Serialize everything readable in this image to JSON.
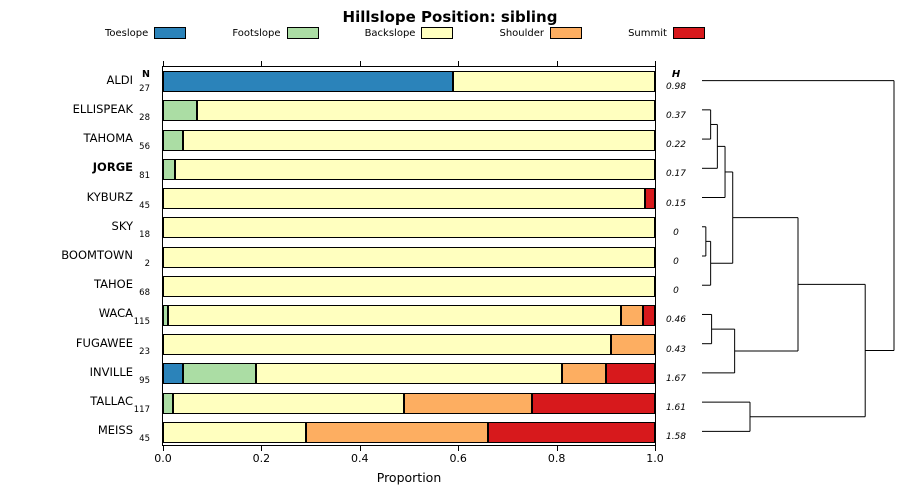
{
  "title": "Hillslope Position: sibling",
  "chart_data": {
    "type": "bar",
    "subtype": "stacked-horizontal-with-dendrogram",
    "title": "Hillslope Position: sibling",
    "xlabel": "Proportion",
    "xlim": [
      0,
      1
    ],
    "x_tick_labels": [
      "0.0",
      "0.2",
      "0.4",
      "0.6",
      "0.8",
      "1.0"
    ],
    "n_column_header": "N",
    "h_column_header": "H",
    "series_categories": [
      "Toeslope",
      "Footslope",
      "Backslope",
      "Shoulder",
      "Summit"
    ],
    "series_colors": [
      "#2B83BA",
      "#ABDDA4",
      "#FFFFBF",
      "#FDAE61",
      "#D7191C"
    ],
    "rows": [
      {
        "site": "ALDI",
        "n": 27,
        "h": "0.98",
        "bold": false,
        "proportions": [
          0.59,
          0,
          0.41,
          0,
          0
        ]
      },
      {
        "site": "ELLISPEAK",
        "n": 28,
        "h": "0.37",
        "bold": false,
        "proportions": [
          0,
          0.07,
          0.93,
          0,
          0
        ]
      },
      {
        "site": "TAHOMA",
        "n": 56,
        "h": "0.22",
        "bold": false,
        "proportions": [
          0,
          0.04,
          0.96,
          0,
          0
        ]
      },
      {
        "site": "JORGE",
        "n": 81,
        "h": "0.17",
        "bold": true,
        "proportions": [
          0,
          0.025,
          0.975,
          0,
          0
        ]
      },
      {
        "site": "KYBURZ",
        "n": 45,
        "h": "0.15",
        "bold": false,
        "proportions": [
          0,
          0,
          0.98,
          0,
          0.02
        ]
      },
      {
        "site": "SKY",
        "n": 18,
        "h": "0",
        "bold": false,
        "proportions": [
          0,
          0,
          1,
          0,
          0
        ]
      },
      {
        "site": "BOOMTOWN",
        "n": 2,
        "h": "0",
        "bold": false,
        "proportions": [
          0,
          0,
          1,
          0,
          0
        ]
      },
      {
        "site": "TAHOE",
        "n": 68,
        "h": "0",
        "bold": false,
        "proportions": [
          0,
          0,
          1,
          0,
          0
        ]
      },
      {
        "site": "WACA",
        "n": 115,
        "h": "0.46",
        "bold": false,
        "proportions": [
          0,
          0.01,
          0.92,
          0.045,
          0.025
        ]
      },
      {
        "site": "FUGAWEE",
        "n": 23,
        "h": "0.43",
        "bold": false,
        "proportions": [
          0,
          0,
          0.91,
          0.09,
          0
        ]
      },
      {
        "site": "INVILLE",
        "n": 95,
        "h": "1.67",
        "bold": false,
        "proportions": [
          0.04,
          0.15,
          0.62,
          0.09,
          0.1
        ]
      },
      {
        "site": "TALLAC",
        "n": 117,
        "h": "1.61",
        "bold": false,
        "proportions": [
          0,
          0.02,
          0.47,
          0.26,
          0.25
        ]
      },
      {
        "site": "MEISS",
        "n": 45,
        "h": "1.58",
        "bold": false,
        "proportions": [
          0,
          0,
          0.29,
          0.37,
          0.34
        ]
      }
    ],
    "dendrogram": {
      "tree": {
        "h": 1.0,
        "c": [
          {
            "leaf": 0
          },
          {
            "h": 0.85,
            "c": [
              {
                "h": 0.5,
                "c": [
                  {
                    "h": 0.16,
                    "c": [
                      {
                        "h": 0.12,
                        "c": [
                          {
                            "h": 0.08,
                            "c": [
                              {
                                "h": 0.045,
                                "c": [
                                  {
                                    "leaf": 1
                                  },
                                  {
                                    "leaf": 2
                                  }
                                ]
                              },
                              {
                                "leaf": 3
                              }
                            ]
                          },
                          {
                            "leaf": 4
                          }
                        ]
                      },
                      {
                        "h": 0.045,
                        "c": [
                          {
                            "h": 0.02,
                            "c": [
                              {
                                "leaf": 5
                              },
                              {
                                "leaf": 6
                              }
                            ]
                          },
                          {
                            "leaf": 7
                          }
                        ]
                      }
                    ]
                  },
                  {
                    "h": 0.17,
                    "c": [
                      {
                        "h": 0.05,
                        "c": [
                          {
                            "leaf": 8
                          },
                          {
                            "leaf": 9
                          }
                        ]
                      },
                      {
                        "leaf": 10
                      }
                    ]
                  }
                ]
              },
              {
                "h": 0.25,
                "c": [
                  {
                    "leaf": 11
                  },
                  {
                    "leaf": 12
                  }
                ]
              }
            ]
          }
        ]
      }
    }
  }
}
